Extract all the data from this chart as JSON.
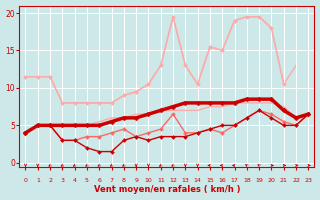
{
  "xlabel": "Vent moyen/en rafales ( km/h )",
  "xlim": [
    -0.5,
    23.5
  ],
  "ylim": [
    -0.5,
    21
  ],
  "xticks": [
    0,
    1,
    2,
    3,
    4,
    5,
    6,
    7,
    8,
    9,
    10,
    11,
    12,
    13,
    14,
    15,
    16,
    17,
    18,
    19,
    20,
    21,
    22,
    23
  ],
  "yticks": [
    0,
    5,
    10,
    15,
    20
  ],
  "bg_color": "#cce8e8",
  "grid_color": "#ffffff",
  "lines": [
    {
      "x": [
        0,
        1,
        2,
        3,
        4,
        5,
        6,
        7,
        8,
        9,
        10,
        11,
        12,
        13,
        14,
        15,
        16,
        17,
        18,
        19,
        20,
        21
      ],
      "y": [
        11.5,
        11.5,
        11.5,
        8,
        8,
        8,
        8,
        8,
        9,
        9.5,
        10.5,
        13,
        19.5,
        13,
        10.5,
        15.5,
        15,
        19,
        19.5,
        19.5,
        18,
        10.5
      ],
      "color": "#ffaaaa",
      "lw": 1.0,
      "marker": "D",
      "ms": 2.0,
      "zorder": 2
    },
    {
      "x": [
        0,
        1,
        2,
        3,
        4,
        5,
        6,
        7,
        8,
        9,
        10,
        11,
        12,
        13,
        14,
        15,
        16,
        17,
        18,
        19,
        20,
        21,
        22,
        23
      ],
      "y": [
        4,
        5,
        5,
        5,
        5,
        5,
        5.5,
        6,
        6,
        6.5,
        6.5,
        7,
        7,
        7,
        7,
        7.5,
        7.5,
        8,
        8,
        8,
        8,
        7.5,
        6,
        6.5
      ],
      "color": "#ffaaaa",
      "lw": 1.0,
      "marker": null,
      "ms": 0,
      "zorder": 2
    },
    {
      "x": [
        0,
        1,
        2,
        3,
        4,
        5,
        6,
        7,
        8,
        9,
        10,
        11,
        12,
        13,
        14,
        15,
        16,
        17,
        18,
        19,
        20,
        21,
        22
      ],
      "y": [
        11.5,
        11.5,
        11.5,
        8,
        8,
        8,
        8,
        8,
        9,
        9.5,
        10.5,
        13,
        19.5,
        13,
        10.5,
        15.5,
        15,
        19,
        19.5,
        19.5,
        18,
        10.5,
        13
      ],
      "color": "#ffaaaa",
      "lw": 1.0,
      "marker": null,
      "ms": 0,
      "zorder": 1
    },
    {
      "x": [
        0,
        1,
        2,
        3,
        4,
        5,
        6,
        7,
        8,
        9,
        10,
        11,
        12,
        13,
        14,
        15,
        16,
        17,
        18,
        19,
        20,
        21,
        22,
        23
      ],
      "y": [
        4,
        5,
        5,
        3,
        3,
        3.5,
        3.5,
        4,
        4.5,
        3.5,
        4,
        4.5,
        6.5,
        4,
        4,
        4.5,
        4,
        5,
        6,
        7,
        6.5,
        5.5,
        5,
        6.5
      ],
      "color": "#ff6666",
      "lw": 1.0,
      "marker": "D",
      "ms": 2.0,
      "zorder": 3
    },
    {
      "x": [
        0,
        1,
        2,
        3,
        4,
        5,
        6,
        7,
        8,
        9,
        10,
        11,
        12,
        13,
        14,
        15,
        16,
        17,
        18,
        19,
        20,
        21,
        22,
        23
      ],
      "y": [
        4,
        5,
        5,
        3,
        3,
        2,
        1.5,
        1.5,
        3,
        3.5,
        3,
        3.5,
        3.5,
        3.5,
        4,
        4.5,
        5,
        5,
        6,
        7,
        6,
        5,
        5,
        6.5
      ],
      "color": "#cc0000",
      "lw": 1.0,
      "marker": "D",
      "ms": 2.0,
      "zorder": 3
    },
    {
      "x": [
        0,
        1,
        2,
        3,
        4,
        5,
        6,
        7,
        8,
        9,
        10,
        11,
        12,
        13,
        14,
        15,
        16,
        17,
        18,
        19,
        20,
        21,
        22,
        23
      ],
      "y": [
        4,
        5,
        5,
        5,
        5,
        5,
        5,
        5.5,
        6,
        6,
        6.5,
        7,
        7.5,
        8,
        8,
        8,
        8,
        8,
        8.5,
        8.5,
        8.5,
        7,
        6,
        6.5
      ],
      "color": "#cc0000",
      "lw": 2.5,
      "marker": "D",
      "ms": 2.5,
      "zorder": 4
    }
  ],
  "wind_arrows": {
    "x": [
      0,
      1,
      2,
      3,
      4,
      5,
      6,
      7,
      8,
      9,
      10,
      11,
      12,
      13,
      14,
      15,
      16,
      17,
      18,
      19,
      20,
      21,
      22,
      23
    ],
    "angles_deg": [
      180,
      180,
      225,
      225,
      225,
      225,
      225,
      225,
      225,
      180,
      180,
      225,
      225,
      180,
      180,
      270,
      270,
      270,
      315,
      315,
      90,
      90,
      90,
      90
    ],
    "color": "#cc0000"
  }
}
